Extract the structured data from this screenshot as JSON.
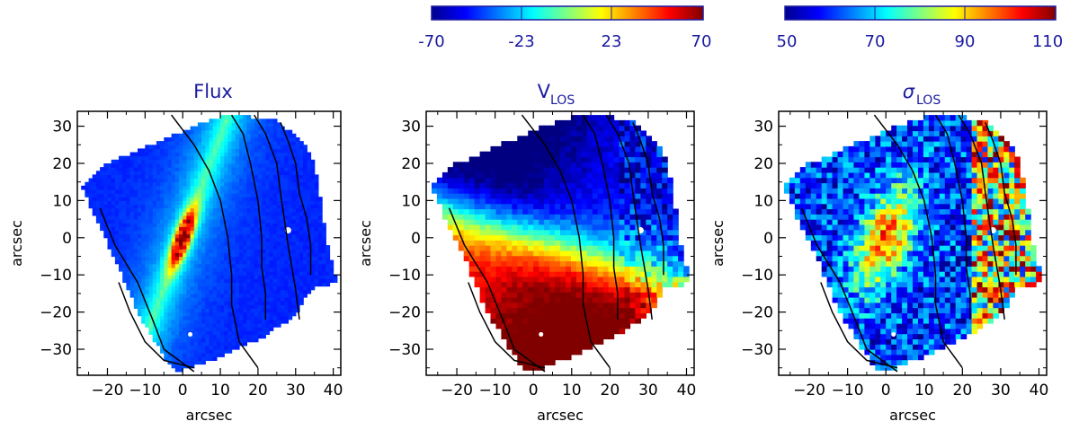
{
  "chart_data": [
    {
      "type": "heatmap",
      "panel": "flux",
      "title": "Flux",
      "xlabel": "arcsec",
      "ylabel": "arcsec",
      "xlim": [
        -28,
        42
      ],
      "ylim": [
        -37,
        34
      ],
      "xticks": [
        -20,
        -10,
        0,
        10,
        20,
        30,
        40
      ],
      "yticks": [
        -30,
        -20,
        -10,
        0,
        10,
        20,
        30
      ],
      "contour_levels": 4,
      "colormap": "jet"
    },
    {
      "type": "heatmap",
      "panel": "velocity",
      "title": "V",
      "title_sub": "LOS",
      "xlabel": "arcsec",
      "ylabel": "arcsec",
      "xlim": [
        -28,
        42
      ],
      "ylim": [
        -37,
        34
      ],
      "xticks": [
        -20,
        -10,
        0,
        10,
        20,
        30,
        40
      ],
      "yticks": [
        -30,
        -20,
        -10,
        0,
        10,
        20,
        30
      ],
      "colorbar": {
        "min": -70,
        "max": 70,
        "ticks": [
          "-70",
          "-23",
          "23",
          "70"
        ]
      },
      "colormap": "jet"
    },
    {
      "type": "heatmap",
      "panel": "dispersion",
      "title": "σ",
      "title_sub": "LOS",
      "xlabel": "arcsec",
      "ylabel": "arcsec",
      "xlim": [
        -28,
        42
      ],
      "ylim": [
        -37,
        34
      ],
      "xticks": [
        -20,
        -10,
        0,
        10,
        20,
        30,
        40
      ],
      "yticks": [
        -30,
        -20,
        -10,
        0,
        10,
        20,
        30
      ],
      "colorbar": {
        "min": 50,
        "max": 110,
        "ticks": [
          "50",
          "70",
          "90",
          "110"
        ]
      },
      "colormap": "jet"
    }
  ],
  "colors": {
    "axis_text": "#1a1aa0",
    "frame": "#000000"
  }
}
